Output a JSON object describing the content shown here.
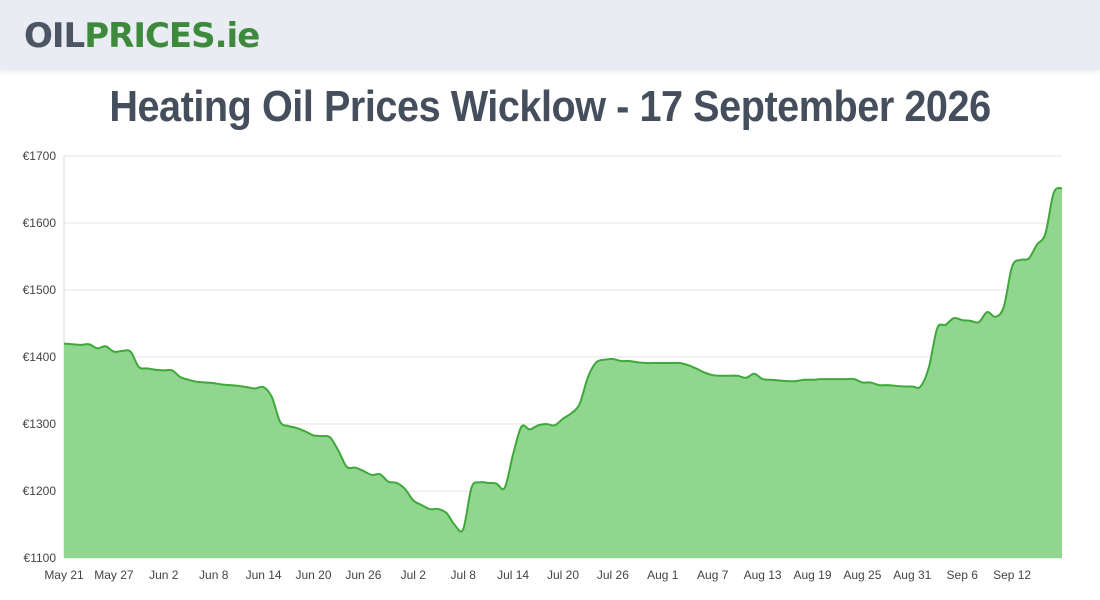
{
  "header": {
    "logo_part1": "OIL",
    "logo_part2": "PRICES.ie"
  },
  "page_title": "Heating Oil Prices Wicklow - 17 September 2026",
  "colors": {
    "area_fill": "#90d68e",
    "line": "#3ea83a",
    "grid": "#e6e6e6",
    "header_bg": "#e9ecf3"
  },
  "chart_data": {
    "type": "area",
    "title": "",
    "xlabel": "",
    "ylabel": "",
    "ylim": [
      1100,
      1700
    ],
    "yticks": [
      "€1100",
      "€1200",
      "€1300",
      "€1400",
      "€1500",
      "€1600",
      "€1700"
    ],
    "ytick_values": [
      1100,
      1200,
      1300,
      1400,
      1500,
      1600,
      1700
    ],
    "xticks": [
      "May 21",
      "May 27",
      "Jun 2",
      "Jun 8",
      "Jun 14",
      "Jun 20",
      "Jun 26",
      "Jul 2",
      "Jul 8",
      "Jul 14",
      "Jul 20",
      "Jul 26",
      "Aug 1",
      "Aug 7",
      "Aug 13",
      "Aug 19",
      "Aug 25",
      "Aug 31",
      "Sep 6",
      "Sep 12"
    ],
    "grid": true,
    "series": [
      {
        "values": [
          1420,
          1419,
          1418,
          1419,
          1413,
          1416,
          1408,
          1409,
          1408,
          1385,
          1383,
          1381,
          1380,
          1380,
          1370,
          1366,
          1363,
          1362,
          1361,
          1359,
          1358,
          1357,
          1355,
          1353,
          1355,
          1340,
          1303,
          1297,
          1294,
          1289,
          1283,
          1282,
          1280,
          1260,
          1236,
          1235,
          1230,
          1224,
          1225,
          1214,
          1212,
          1203,
          1186,
          1179,
          1173,
          1173,
          1167,
          1149,
          1143,
          1205,
          1213,
          1212,
          1211,
          1205,
          1255,
          1296,
          1292,
          1298,
          1300,
          1298,
          1308,
          1316,
          1330,
          1370,
          1392,
          1396,
          1397,
          1394,
          1394,
          1392,
          1391,
          1391,
          1391,
          1391,
          1391,
          1388,
          1383,
          1377,
          1373,
          1372,
          1372,
          1372,
          1369,
          1375,
          1367,
          1366,
          1365,
          1364,
          1364,
          1366,
          1366,
          1367,
          1367,
          1367,
          1367,
          1367,
          1362,
          1362,
          1358,
          1358,
          1357,
          1356,
          1356,
          1356,
          1385,
          1443,
          1448,
          1458,
          1455,
          1454,
          1452,
          1467,
          1460,
          1475,
          1535,
          1545,
          1547,
          1568,
          1584,
          1645,
          1652
        ]
      }
    ]
  }
}
